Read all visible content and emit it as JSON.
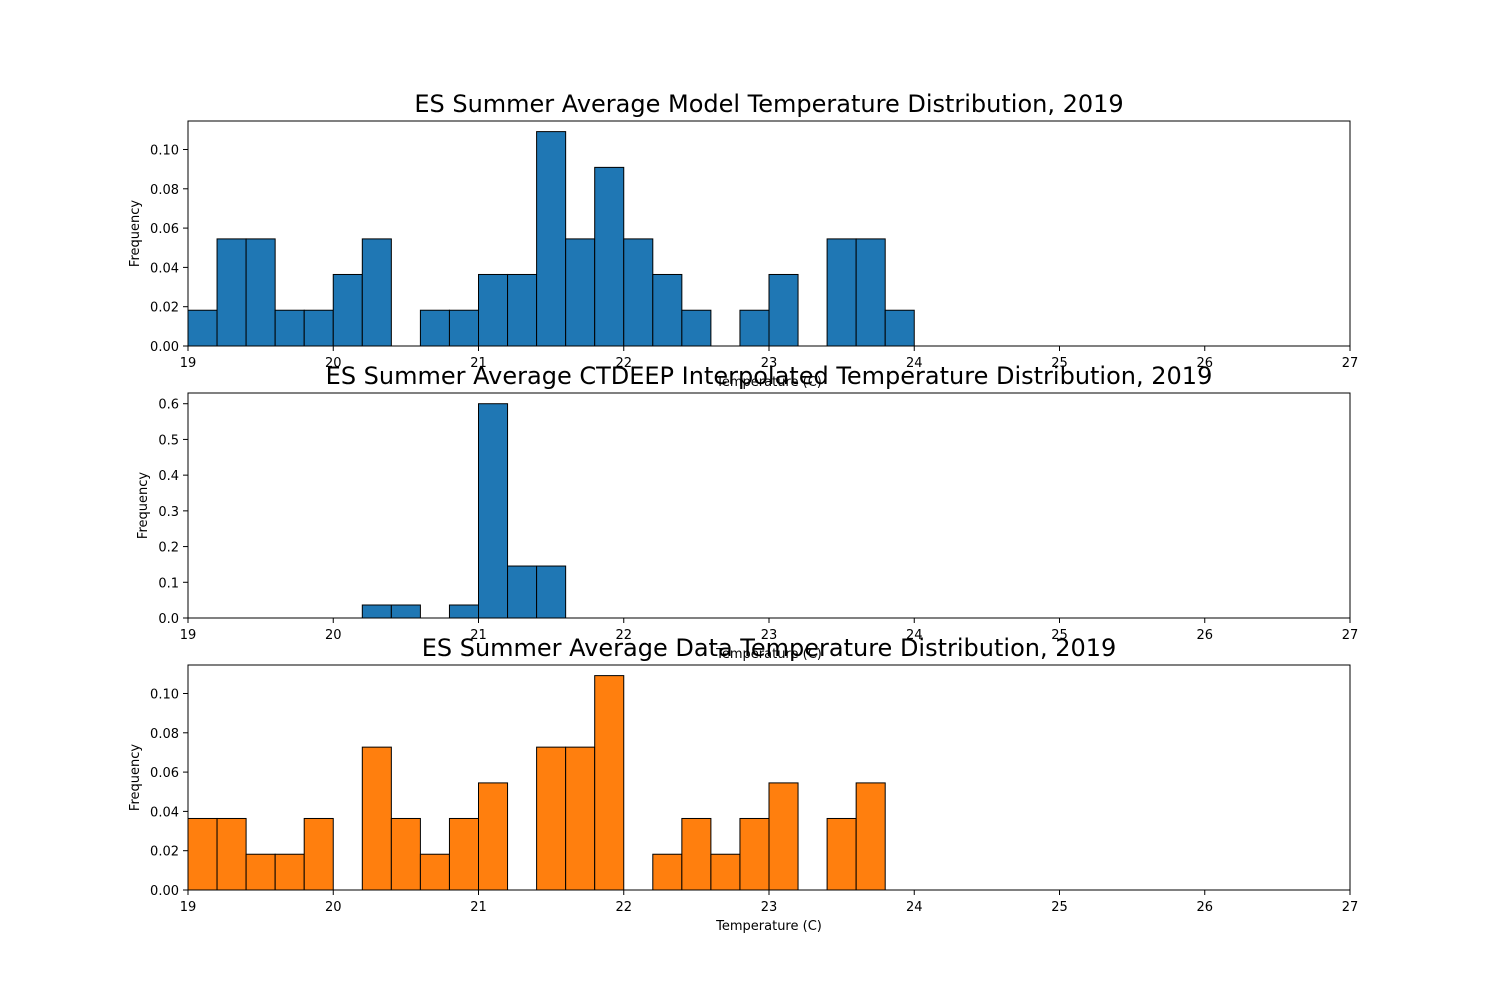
{
  "chart_data": [
    {
      "type": "bar",
      "title": "ES Summer Average Model Temperature Distribution, 2019",
      "xlabel": "Temperature (C)",
      "ylabel": "Frequency",
      "xlim": [
        19,
        27
      ],
      "ylim": [
        0,
        0.1145
      ],
      "xticks": [
        "19",
        "20",
        "21",
        "22",
        "23",
        "24",
        "25",
        "26",
        "27"
      ],
      "yticks": [
        "0.00",
        "0.02",
        "0.04",
        "0.06",
        "0.08",
        "0.10"
      ],
      "bin_start": 19,
      "bin_width": 0.2,
      "color": "#1f77b4",
      "values": [
        0.0182,
        0.0545,
        0.0545,
        0.0182,
        0.0182,
        0.0364,
        0.0545,
        0,
        0.0182,
        0.0182,
        0.0364,
        0.0364,
        0.1091,
        0.0545,
        0.0909,
        0.0545,
        0.0364,
        0.0182,
        0,
        0.0182,
        0.0364,
        0,
        0.0545,
        0.0545,
        0.0182,
        0,
        0,
        0,
        0,
        0,
        0,
        0,
        0,
        0,
        0,
        0,
        0,
        0,
        0
      ]
    },
    {
      "type": "bar",
      "title": "ES Summer Average CTDEEP Interpolated Temperature Distribution, 2019",
      "xlabel": "Temperature (C)",
      "ylabel": "Frequency",
      "xlim": [
        19,
        27
      ],
      "ylim": [
        0,
        0.63
      ],
      "xticks": [
        "19",
        "20",
        "21",
        "22",
        "23",
        "24",
        "25",
        "26",
        "27"
      ],
      "yticks": [
        "0.0",
        "0.1",
        "0.2",
        "0.3",
        "0.4",
        "0.5",
        "0.6"
      ],
      "bin_start": 19,
      "bin_width": 0.2,
      "color": "#1f77b4",
      "values": [
        0,
        0,
        0,
        0,
        0,
        0,
        0.0364,
        0.0364,
        0,
        0.0364,
        0.6,
        0.1455,
        0.1455,
        0,
        0,
        0,
        0,
        0,
        0,
        0,
        0,
        0,
        0,
        0,
        0,
        0,
        0,
        0,
        0,
        0,
        0,
        0,
        0,
        0,
        0,
        0,
        0,
        0,
        0
      ]
    },
    {
      "type": "bar",
      "title": "ES Summer Average Data Temperature Distribution, 2019",
      "xlabel": "Temperature (C)",
      "ylabel": "Frequency",
      "xlim": [
        19,
        27
      ],
      "ylim": [
        0,
        0.1145
      ],
      "xticks": [
        "19",
        "20",
        "21",
        "22",
        "23",
        "24",
        "25",
        "26",
        "27"
      ],
      "yticks": [
        "0.00",
        "0.02",
        "0.04",
        "0.06",
        "0.08",
        "0.10"
      ],
      "bin_start": 19,
      "bin_width": 0.2,
      "color": "#ff7f0e",
      "values": [
        0.0364,
        0.0364,
        0.0182,
        0.0182,
        0.0364,
        0,
        0.0727,
        0.0364,
        0.0182,
        0.0364,
        0.0545,
        0,
        0.0727,
        0.0727,
        0.1091,
        0,
        0.0182,
        0.0364,
        0.0182,
        0.0364,
        0.0545,
        0,
        0.0364,
        0.0545,
        0,
        0,
        0,
        0,
        0,
        0,
        0,
        0,
        0,
        0,
        0,
        0,
        0,
        0,
        0
      ]
    }
  ]
}
